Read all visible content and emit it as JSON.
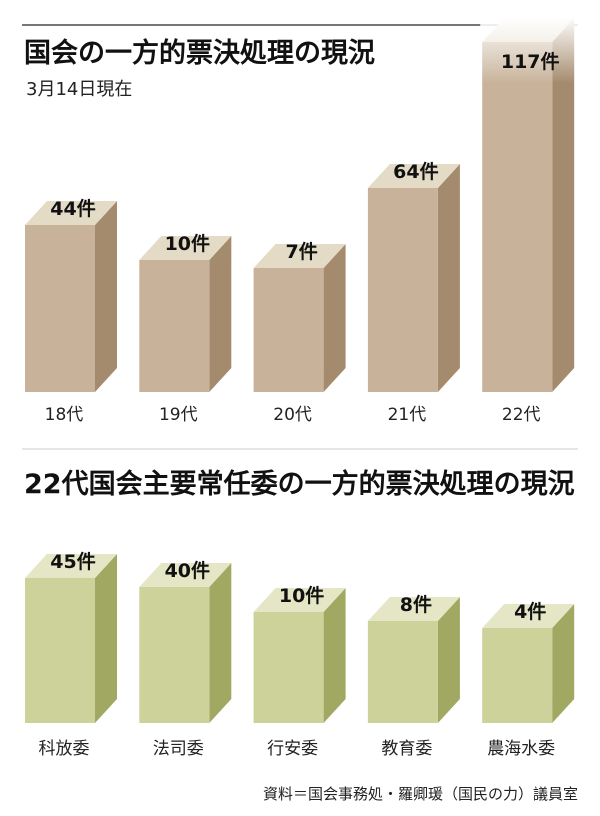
{
  "chart_data": [
    {
      "type": "bar",
      "title": "国会の一方的票決処理の現況",
      "subtitle": "3月14日現在",
      "categories": [
        "18代",
        "19代",
        "20代",
        "21代",
        "22代"
      ],
      "values": [
        44,
        10,
        7,
        64,
        117
      ],
      "value_labels": [
        "44件",
        "10件",
        "7件",
        "64件",
        "117件"
      ],
      "grid": false,
      "style": "3d",
      "colors": {
        "front": "#c8b39a",
        "side": "#a58b6d",
        "top": "#e4dbc7"
      }
    },
    {
      "type": "bar",
      "title": "22代国会主要常任委の一方的票決処理の現況",
      "categories": [
        "科放委",
        "法司委",
        "行安委",
        "教育委",
        "農海水委"
      ],
      "values": [
        45,
        40,
        10,
        8,
        4
      ],
      "value_labels": [
        "45件",
        "40件",
        "10件",
        "8件",
        "4件"
      ],
      "grid": false,
      "style": "3d",
      "colors": {
        "front": "#cdd29b",
        "side": "#a1a862",
        "top": "#e4e6c6"
      }
    }
  ],
  "source": "資料＝国会事務処・羅卿瑗（国民の力）議員室"
}
